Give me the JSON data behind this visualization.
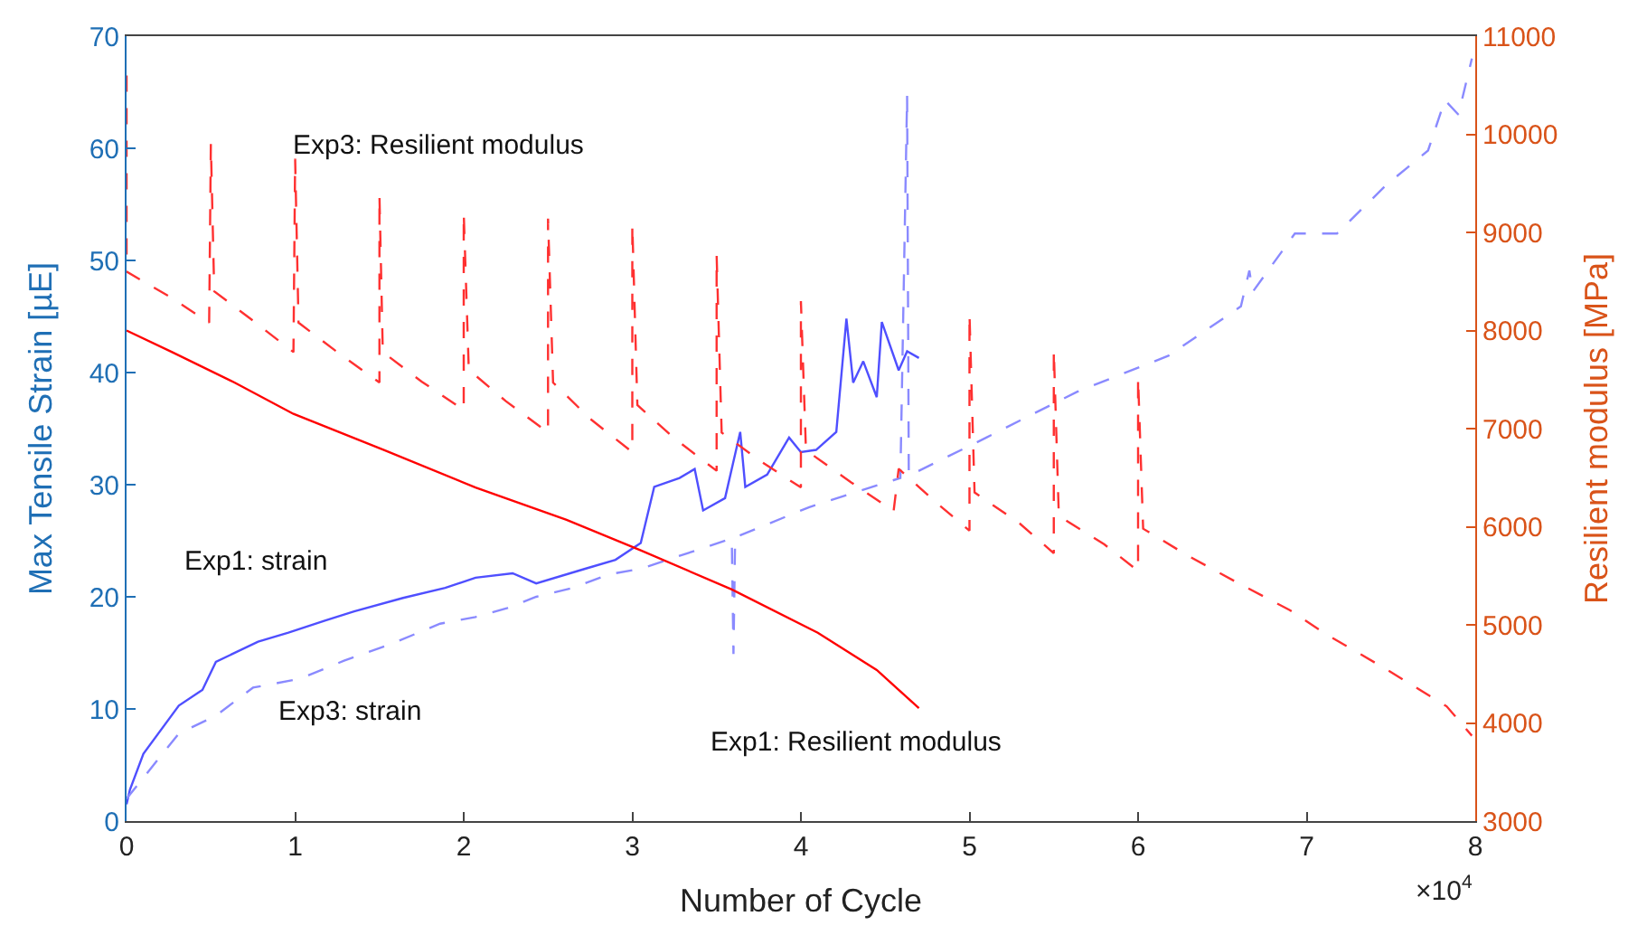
{
  "chart_data": {
    "type": "line",
    "xlabel": "Number of Cycle",
    "ylabel": "Max Tensile Strain [µE]",
    "y2label": "Resilient modulus [MPa]",
    "xlim": [
      0,
      8
    ],
    "xticks": [
      0,
      1,
      2,
      3,
      4,
      5,
      6,
      7,
      8
    ],
    "ylim": [
      0,
      70
    ],
    "yticks": [
      0,
      10,
      20,
      30,
      40,
      50,
      60,
      70
    ],
    "y2lim": [
      3000,
      11000
    ],
    "y2ticks": [
      3000,
      4000,
      5000,
      6000,
      7000,
      8000,
      9000,
      10000,
      11000
    ],
    "grid": false,
    "legend": false,
    "annotations": [
      "×10$^{4}$"
    ],
    "series": [
      {
        "name": "Exp1: strain",
        "axis": "y",
        "line_style": "solid",
        "color": "#4f4fff",
        "x": [
          0,
          0.02,
          0.1,
          0.31,
          0.45,
          0.53,
          0.78,
          0.96,
          1.18,
          1.35,
          1.64,
          1.89,
          2.07,
          2.29,
          2.43,
          2.72,
          2.9,
          3.05,
          3.13,
          3.28,
          3.37,
          3.42,
          3.55,
          3.64,
          3.67,
          3.8,
          3.93,
          4.0,
          4.09,
          4.21,
          4.27,
          4.31,
          4.37,
          4.45,
          4.48,
          4.58,
          4.63,
          4.7
        ],
        "values": [
          1.5,
          2.8,
          6,
          10.3,
          11.7,
          14.2,
          16,
          16.8,
          17.9,
          18.7,
          19.9,
          20.8,
          21.7,
          22.1,
          21.2,
          22.5,
          23.3,
          24.8,
          29.8,
          30.6,
          31.4,
          27.7,
          28.8,
          34.7,
          29.8,
          30.9,
          34.2,
          32.9,
          33.1,
          34.7,
          44.8,
          39.1,
          41,
          37.8,
          44.5,
          40.2,
          41.9,
          41.3
        ]
      },
      {
        "name": "Exp3: strain",
        "axis": "y",
        "line_style": "dashed",
        "color": "#8a8aff",
        "x": [
          0,
          0.31,
          0.53,
          0.75,
          1.03,
          1.29,
          1.57,
          1.86,
          2.07,
          2.26,
          2.43,
          2.65,
          2.86,
          3.05,
          3.59,
          3.6,
          3.61,
          4.05,
          4.59,
          4.63,
          4.64,
          5.1,
          5.31,
          5.64,
          6.18,
          6.61,
          6.66,
          6.68,
          6.93,
          7.18,
          7.47,
          7.72,
          7.82,
          7.9,
          7.98
        ],
        "values": [
          2,
          7.8,
          9.4,
          11.9,
          12.7,
          14.3,
          15.8,
          17.6,
          18.2,
          19,
          20,
          20.8,
          22,
          22.5,
          25.2,
          14.9,
          25.3,
          28,
          30.6,
          64.7,
          30.8,
          34.2,
          35.8,
          38.3,
          41.5,
          45.9,
          49.1,
          47.2,
          52.4,
          52.4,
          56.7,
          59.8,
          64.3,
          63,
          68
        ]
      },
      {
        "name": "Exp1: Resilient modulus",
        "axis": "y2",
        "line_style": "solid",
        "color": "#ff0000",
        "x": [
          0,
          0.27,
          0.64,
          0.99,
          1.53,
          2.07,
          2.61,
          3.05,
          3.59,
          4.1,
          4.45,
          4.7
        ],
        "values": [
          8000,
          7780,
          7470,
          7150,
          6780,
          6400,
          6070,
          5760,
          5360,
          4920,
          4540,
          4150
        ]
      },
      {
        "name": "Exp3: Resilient modulus",
        "axis": "y2",
        "line_style": "dashed",
        "color": "#ff3030",
        "x": [
          0,
          0,
          0.25,
          0.49,
          0.5,
          0.52,
          0.75,
          0.99,
          1.0,
          1.02,
          1.25,
          1.5,
          1.5,
          1.52,
          1.75,
          2.0,
          2.0,
          2.03,
          2.25,
          2.5,
          2.5,
          2.53,
          2.75,
          3.0,
          3.0,
          3.03,
          3.25,
          3.5,
          3.5,
          3.53,
          3.75,
          4.0,
          4.0,
          4.03,
          4.3,
          4.55,
          4.58,
          4.8,
          5.0,
          5.0,
          5.03,
          5.3,
          5.5,
          5.5,
          5.53,
          5.8,
          6.0,
          6.0,
          6.03,
          6.3,
          6.6,
          6.9,
          7.12,
          7.47,
          7.83,
          7.98
        ],
        "values": [
          10600,
          8600,
          8350,
          8080,
          9900,
          8400,
          8100,
          7780,
          9750,
          8080,
          7780,
          7470,
          9380,
          7780,
          7480,
          7190,
          9200,
          7600,
          7280,
          6960,
          9140,
          7470,
          7100,
          6760,
          9080,
          7240,
          6900,
          6570,
          8770,
          6960,
          6680,
          6400,
          8300,
          6780,
          6450,
          6160,
          6590,
          6250,
          5960,
          8170,
          6350,
          6030,
          5730,
          7800,
          6110,
          5820,
          5550,
          7520,
          5980,
          5700,
          5420,
          5150,
          4900,
          4550,
          4170,
          3870
        ]
      }
    ]
  }
}
